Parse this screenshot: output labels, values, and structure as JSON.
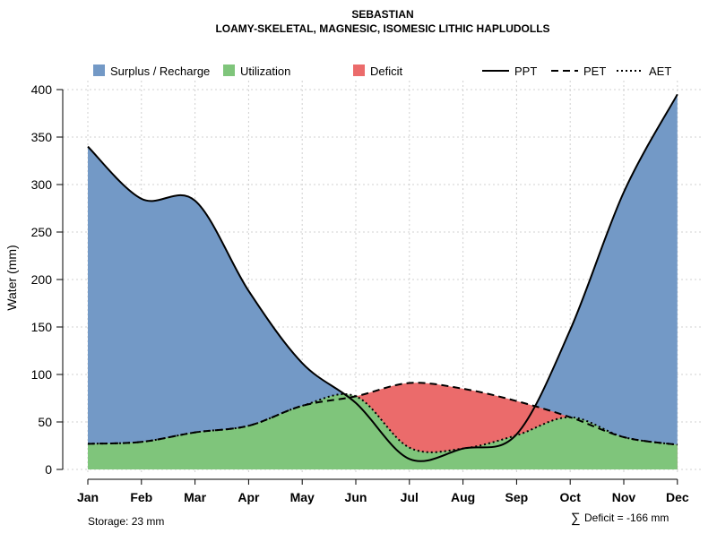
{
  "chart_data": {
    "type": "area",
    "title": "SEBASTIAN",
    "subtitle": "LOAMY-SKELETAL, MAGNESIC, ISOMESIC LITHIC HAPLUDOLLS",
    "xlabel": "",
    "ylabel": "Water (mm)",
    "ylim": [
      0,
      400
    ],
    "yticks": [
      0,
      50,
      100,
      150,
      200,
      250,
      300,
      350,
      400
    ],
    "categories": [
      "Jan",
      "Feb",
      "Mar",
      "Apr",
      "May",
      "Jun",
      "Jul",
      "Aug",
      "Sep",
      "Oct",
      "Nov",
      "Dec"
    ],
    "grid": true,
    "legend_placement": "top",
    "series": [
      {
        "name": "PPT",
        "style": "solid",
        "values": [
          340,
          285,
          283,
          188,
          112,
          70,
          11,
          22,
          37,
          147,
          292,
          395
        ]
      },
      {
        "name": "PET",
        "style": "dashed",
        "values": [
          27,
          29,
          39,
          46,
          67,
          77,
          91,
          85,
          72,
          55,
          34,
          26
        ]
      },
      {
        "name": "AET",
        "style": "dotted",
        "values": [
          27,
          29,
          39,
          46,
          67,
          77,
          23,
          22,
          36,
          55,
          34,
          26
        ]
      }
    ],
    "fills": [
      {
        "name": "Surplus / Recharge",
        "color": "#7399C6"
      },
      {
        "name": "Utilization",
        "color": "#7FC57B"
      },
      {
        "name": "Deficit",
        "color": "#EB6B6B"
      }
    ],
    "annotations": {
      "storage": "Storage: 23 mm",
      "deficit_symbol": "∑",
      "deficit": "Deficit = -166 mm"
    }
  }
}
